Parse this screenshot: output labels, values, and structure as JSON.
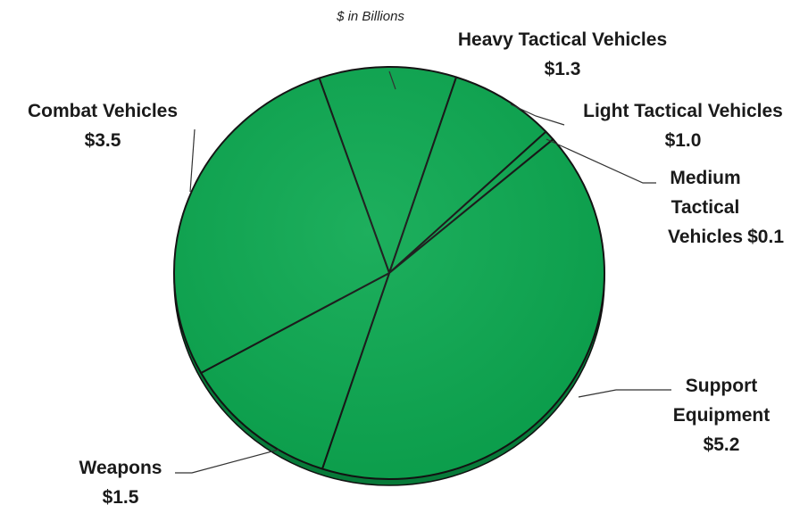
{
  "chart_data": {
    "type": "pie",
    "subtitle": "$ in Billions",
    "categories": [
      "Heavy Tactical Vehicles",
      "Light Tactical Vehicles",
      "Medium Tactical Vehicles",
      "Support Equipment",
      "Weapons",
      "Combat Vehicles"
    ],
    "values": [
      1.3,
      1.0,
      0.1,
      5.2,
      1.5,
      3.5
    ],
    "value_labels": [
      "$1.3",
      "$1.0",
      "$0.1",
      "$5.2",
      "$1.5",
      "$3.5"
    ],
    "color": "#0aa84f"
  }
}
